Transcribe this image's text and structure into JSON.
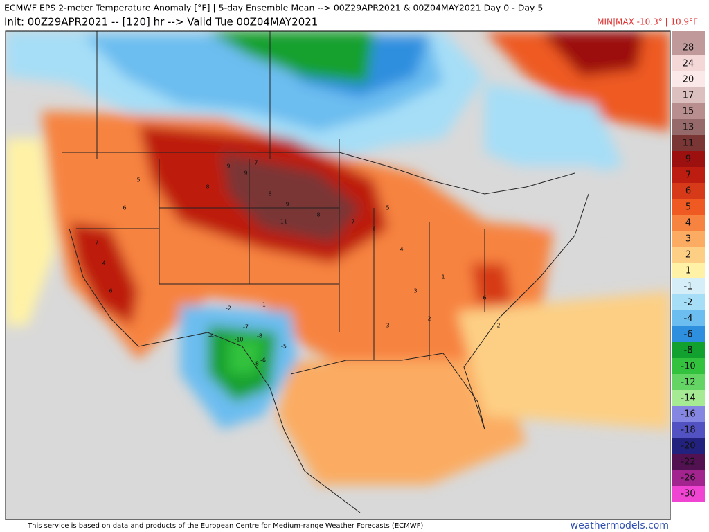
{
  "header": {
    "line1": "ECMWF EPS 2-meter Temperature Anomaly [°F] | 5-day Ensemble Mean --> 00Z29APR2021 & 00Z04MAY2021   Day 0 - Day 5",
    "line2": "Init: 00Z29APR2021 -- [120] hr --> Valid Tue 00Z04MAY2021",
    "minmax": "MIN|MAX -10.3° | 10.9°F"
  },
  "colorbar": {
    "entries": [
      {
        "label": "28",
        "color": "#c09a9a"
      },
      {
        "label": "24",
        "color": "#f4d8d8"
      },
      {
        "label": "20",
        "color": "#fbe9e9"
      },
      {
        "label": "17",
        "color": "#dcc0c0"
      },
      {
        "label": "15",
        "color": "#b88e8e"
      },
      {
        "label": "13",
        "color": "#966a6a"
      },
      {
        "label": "11",
        "color": "#7a3535"
      },
      {
        "label": "9",
        "color": "#9c1010"
      },
      {
        "label": "7",
        "color": "#bd1d10"
      },
      {
        "label": "6",
        "color": "#d63a18"
      },
      {
        "label": "5",
        "color": "#ee5a22"
      },
      {
        "label": "4",
        "color": "#f78340"
      },
      {
        "label": "3",
        "color": "#fbac62"
      },
      {
        "label": "2",
        "color": "#fdcf84"
      },
      {
        "label": "1",
        "color": "#fff2a6"
      },
      {
        "label": "-1",
        "color": "#d6eef7"
      },
      {
        "label": "-2",
        "color": "#a6def7"
      },
      {
        "label": "-4",
        "color": "#6cbdf0"
      },
      {
        "label": "-6",
        "color": "#2f8fdf"
      },
      {
        "label": "-8",
        "color": "#12a02e"
      },
      {
        "label": "-10",
        "color": "#32c23e"
      },
      {
        "label": "-12",
        "color": "#64d464"
      },
      {
        "label": "-14",
        "color": "#a6ea94"
      },
      {
        "label": "-16",
        "color": "#8585e2"
      },
      {
        "label": "-18",
        "color": "#5252c2"
      },
      {
        "label": "-20",
        "color": "#22227e"
      },
      {
        "label": "-22",
        "color": "#521252"
      },
      {
        "label": "-26",
        "color": "#a2248e"
      },
      {
        "label": "-30",
        "color": "#f044d2"
      }
    ]
  },
  "map_labels": [
    "9",
    "9",
    "8",
    "11",
    "9",
    "8",
    "7",
    "8",
    "7",
    "6",
    "5",
    "4",
    "3",
    "2",
    "1",
    "-1",
    "-2",
    "-4",
    "-5",
    "-7",
    "-8",
    "-10",
    "-8",
    "-6",
    "6",
    "6",
    "5",
    "4",
    "3",
    "2",
    "7",
    "6"
  ],
  "footer": {
    "notice": "This service is based on data and products of the European Centre for Medium-range Weather Forecasts (ECMWF)",
    "site": "weathermodels.com"
  }
}
